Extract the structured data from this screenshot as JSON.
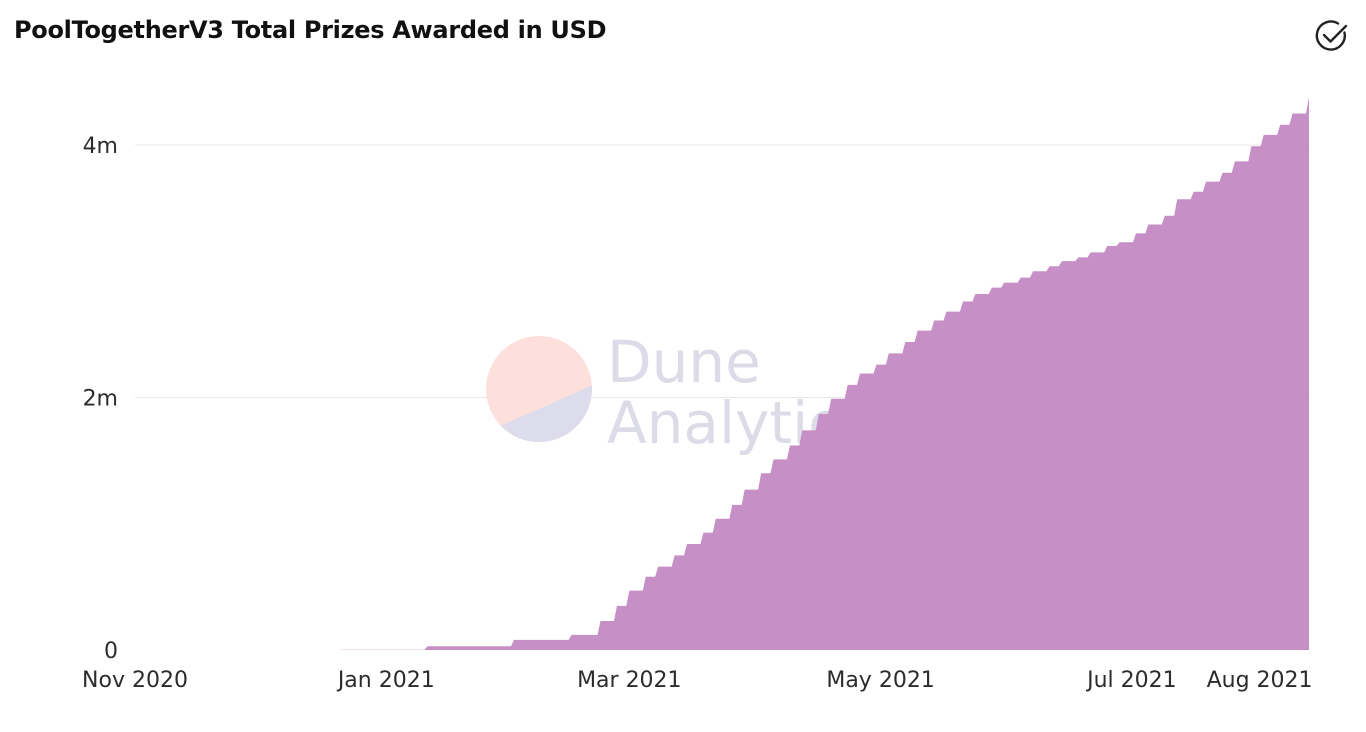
{
  "header": {
    "title": "PoolTogetherV3 Total Prizes Awarded in USD",
    "status_icon": "check-circle-icon"
  },
  "watermark": {
    "line1": "Dune",
    "line2": "Analytics"
  },
  "colors": {
    "area_fill": "#c389c3",
    "gridline": "#e8e8e8",
    "text": "#2c2c2c"
  },
  "chart_data": {
    "type": "area",
    "title": "PoolTogetherV3 Total Prizes Awarded in USD",
    "xlabel": "",
    "ylabel": "",
    "ylim": [
      0,
      4400000
    ],
    "grid": true,
    "y_ticks": [
      {
        "value": 0,
        "label": "0"
      },
      {
        "value": 2000000,
        "label": "2m"
      },
      {
        "value": 4000000,
        "label": "4m"
      }
    ],
    "x_ticks": [
      {
        "date": "2020-11-01",
        "label": "Nov 2020"
      },
      {
        "date": "2021-01-01",
        "label": "Jan 2021"
      },
      {
        "date": "2021-03-01",
        "label": "Mar 2021"
      },
      {
        "date": "2021-05-01",
        "label": "May 2021"
      },
      {
        "date": "2021-07-01",
        "label": "Jul 2021"
      },
      {
        "date": "2021-08-01",
        "label": "Aug 2021"
      }
    ],
    "x_start": "2020-11-01",
    "x_end": "2021-08-13",
    "series": [
      {
        "step": true,
        "x": [
          "2020-12-21",
          "2021-01-11",
          "2021-02-01",
          "2021-02-15",
          "2021-02-22",
          "2021-02-26",
          "2021-03-01",
          "2021-03-05",
          "2021-03-08",
          "2021-03-12",
          "2021-03-15",
          "2021-03-19",
          "2021-03-22",
          "2021-03-26",
          "2021-03-29",
          "2021-04-02",
          "2021-04-05",
          "2021-04-09",
          "2021-04-12",
          "2021-04-16",
          "2021-04-19",
          "2021-04-23",
          "2021-04-26",
          "2021-04-30",
          "2021-05-03",
          "2021-05-07",
          "2021-05-10",
          "2021-05-14",
          "2021-05-17",
          "2021-05-21",
          "2021-05-24",
          "2021-05-28",
          "2021-05-31",
          "2021-06-04",
          "2021-06-07",
          "2021-06-11",
          "2021-06-14",
          "2021-06-18",
          "2021-06-21",
          "2021-06-25",
          "2021-06-28",
          "2021-07-02",
          "2021-07-05",
          "2021-07-09",
          "2021-07-12",
          "2021-07-16",
          "2021-07-19",
          "2021-07-23",
          "2021-07-26",
          "2021-07-30",
          "2021-08-02",
          "2021-08-06",
          "2021-08-09",
          "2021-08-13"
        ],
        "values": [
          2000,
          30000,
          80000,
          120000,
          230000,
          350000,
          470000,
          580000,
          660000,
          750000,
          840000,
          930000,
          1040000,
          1150000,
          1270000,
          1400000,
          1510000,
          1620000,
          1740000,
          1870000,
          1990000,
          2100000,
          2190000,
          2260000,
          2350000,
          2440000,
          2530000,
          2610000,
          2680000,
          2760000,
          2820000,
          2870000,
          2910000,
          2950000,
          3000000,
          3040000,
          3080000,
          3110000,
          3150000,
          3200000,
          3230000,
          3300000,
          3370000,
          3440000,
          3570000,
          3630000,
          3710000,
          3780000,
          3870000,
          3990000,
          4080000,
          4160000,
          4250000,
          4380000
        ]
      }
    ]
  }
}
